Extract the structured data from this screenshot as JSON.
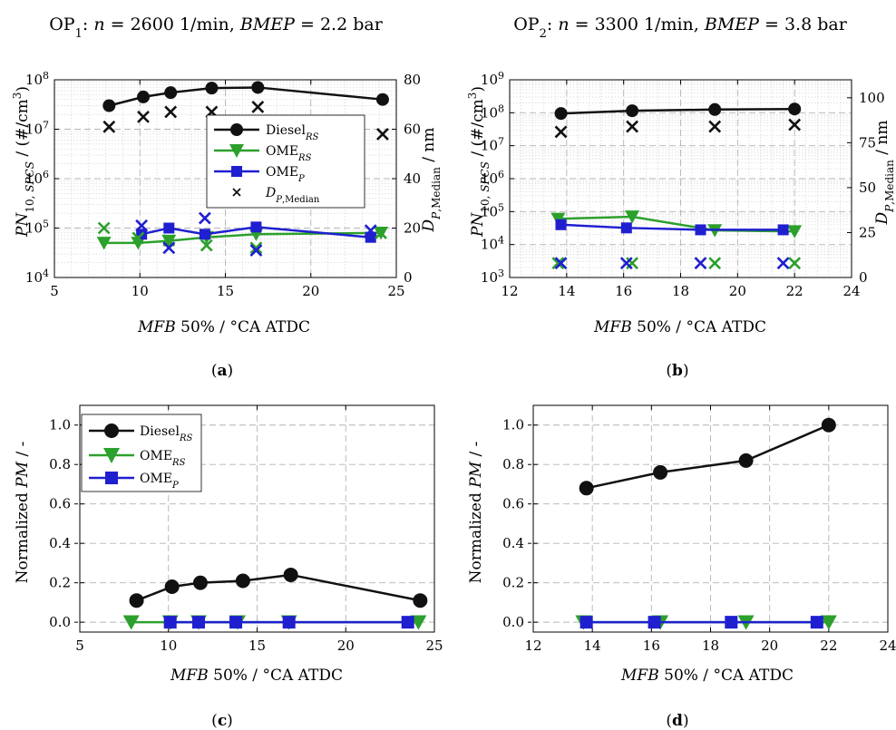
{
  "colors": {
    "diesel": "#111111",
    "ome_rs": "#2ca02c",
    "ome_p": "#1f1fd0",
    "dp": "#111111",
    "grid_major": "#b4b4b4",
    "grid_minor": "#d6d6d6"
  },
  "chart_data": [
    {
      "id": "a",
      "type": "line",
      "title": "OP1: n = 2600 1/min, BMEP = 2.2 bar",
      "panel_label": "(a)",
      "xlabel": "MFB 50% / °CA ATDC",
      "ylabel_left": "PN10, SPCS / (#/cm3)",
      "ylabel_right": "DP,Median / nm",
      "xlim": [
        5,
        25
      ],
      "xticks": [
        "5",
        "10",
        "15",
        "20",
        "25"
      ],
      "ylim_left": [
        10000,
        100000000
      ],
      "yscale_left": "log",
      "yticks_left": [
        "10^4",
        "10^5",
        "10^6",
        "10^7",
        "10^8"
      ],
      "ylim_right": [
        0,
        80
      ],
      "yticks_right": [
        "0",
        "20",
        "40",
        "60",
        "80"
      ],
      "grid": true,
      "legend": {
        "placement": "center-right",
        "entries": [
          "DieselRS",
          "OMERS",
          "OMEP",
          "DP,Median"
        ]
      },
      "series": [
        {
          "name": "DieselRS",
          "marker": "circle",
          "x": [
            8.2,
            10.2,
            11.8,
            14.2,
            16.9,
            24.2
          ],
          "y": [
            30000000,
            45000000,
            55000000,
            68000000,
            70000000,
            40000000
          ]
        },
        {
          "name": "OMERS",
          "marker": "triangle-down",
          "x": [
            7.9,
            9.9,
            11.7,
            13.9,
            16.8,
            24.1
          ],
          "y": [
            50000,
            50000,
            55000,
            65000,
            75000,
            80000
          ]
        },
        {
          "name": "OMEP",
          "marker": "square",
          "x": [
            10.1,
            11.7,
            13.8,
            16.8,
            23.5
          ],
          "y": [
            75000,
            100000,
            75000,
            105000,
            65000
          ]
        },
        {
          "name": "DP,Median",
          "marker": "x",
          "axis": "right",
          "groups": [
            {
              "color": "diesel",
              "x": [
                8.2,
                10.2,
                11.8,
                14.2,
                16.9,
                24.2
              ],
              "y": [
                61,
                65,
                67,
                67,
                69,
                58
              ]
            },
            {
              "color": "ome_rs",
              "x": [
                7.9,
                9.9,
                11.7,
                13.9,
                16.8,
                24.1
              ],
              "y": [
                20,
                16,
                15,
                13,
                12,
                18
              ]
            },
            {
              "color": "ome_p",
              "x": [
                10.1,
                11.7,
                13.8,
                16.8,
                23.5
              ],
              "y": [
                21,
                12,
                24,
                11,
                19
              ]
            }
          ]
        }
      ]
    },
    {
      "id": "b",
      "type": "line",
      "title": "OP2: n = 3300 1/min, BMEP = 3.8 bar",
      "panel_label": "(b)",
      "xlabel": "MFB 50% / °CA ATDC",
      "ylabel_left": "PN10, SPCS / (#/cm3)",
      "ylabel_right": "DP,Median / nm",
      "xlim": [
        12,
        24
      ],
      "xticks": [
        "12",
        "14",
        "16",
        "18",
        "20",
        "22",
        "24"
      ],
      "ylim_left": [
        1000,
        1000000000
      ],
      "yscale_left": "log",
      "yticks_left": [
        "10^3",
        "10^4",
        "10^5",
        "10^6",
        "10^7",
        "10^8",
        "10^9"
      ],
      "ylim_right": [
        0,
        110
      ],
      "yticks_right": [
        "0",
        "25",
        "50",
        "75",
        "100"
      ],
      "grid": true,
      "series": [
        {
          "name": "DieselRS",
          "marker": "circle",
          "x": [
            13.8,
            16.3,
            19.2,
            22
          ],
          "y": [
            95000000,
            115000000,
            125000000,
            130000000
          ]
        },
        {
          "name": "OMERS",
          "marker": "triangle-down",
          "x": [
            13.7,
            16.3,
            19.2,
            22
          ],
          "y": [
            60000,
            70000,
            27000,
            25000
          ]
        },
        {
          "name": "OMEP",
          "marker": "square",
          "x": [
            13.8,
            16.1,
            18.7,
            21.6
          ],
          "y": [
            40000,
            32000,
            28000,
            28000
          ]
        },
        {
          "name": "DP,Median",
          "marker": "x",
          "axis": "right",
          "groups": [
            {
              "color": "diesel",
              "x": [
                13.8,
                16.3,
                19.2,
                22
              ],
              "y": [
                81,
                84,
                84,
                85
              ]
            },
            {
              "color": "ome_rs",
              "x": [
                13.7,
                16.3,
                19.2,
                22
              ],
              "y": [
                8,
                8,
                8,
                8
              ]
            },
            {
              "color": "ome_p",
              "x": [
                13.8,
                16.1,
                18.7,
                21.6
              ],
              "y": [
                8,
                8,
                8,
                8
              ]
            }
          ]
        }
      ]
    },
    {
      "id": "c",
      "type": "line",
      "panel_label": "(c)",
      "xlabel": "MFB 50% / °CA ATDC",
      "ylabel": "Normalized PM / -",
      "xlim": [
        5,
        25
      ],
      "xticks": [
        "5",
        "10",
        "15",
        "20",
        "25"
      ],
      "ylim": [
        -0.05,
        1.1
      ],
      "yticks": [
        "0.0",
        "0.2",
        "0.4",
        "0.6",
        "0.8",
        "1.0"
      ],
      "grid": true,
      "legend": {
        "placement": "top-left",
        "entries": [
          "DieselRS",
          "OMERS",
          "OMEP"
        ]
      },
      "series": [
        {
          "name": "DieselRS",
          "marker": "circle",
          "x": [
            8.2,
            10.2,
            11.8,
            14.2,
            16.9,
            24.2
          ],
          "y": [
            0.11,
            0.18,
            0.2,
            0.21,
            0.24,
            0.11
          ]
        },
        {
          "name": "OMERS",
          "marker": "triangle-down",
          "x": [
            7.9,
            10.1,
            11.7,
            13.9,
            16.8,
            24.1
          ],
          "y": [
            0,
            0,
            0,
            0,
            0,
            0
          ]
        },
        {
          "name": "OMEP",
          "marker": "square",
          "x": [
            10.1,
            11.7,
            13.8,
            16.8,
            23.5
          ],
          "y": [
            0,
            0,
            0,
            0,
            0
          ]
        }
      ]
    },
    {
      "id": "d",
      "type": "line",
      "panel_label": "(d)",
      "xlabel": "MFB 50% / °CA ATDC",
      "ylabel": "Normalized PM / -",
      "xlim": [
        12,
        24
      ],
      "xticks": [
        "12",
        "14",
        "16",
        "18",
        "20",
        "22",
        "24"
      ],
      "ylim": [
        -0.05,
        1.1
      ],
      "yticks": [
        "0.0",
        "0.2",
        "0.4",
        "0.6",
        "0.8",
        "1.0"
      ],
      "grid": true,
      "series": [
        {
          "name": "DieselRS",
          "marker": "circle",
          "x": [
            13.8,
            16.3,
            19.2,
            22
          ],
          "y": [
            0.68,
            0.76,
            0.82,
            1.0
          ]
        },
        {
          "name": "OMERS",
          "marker": "triangle-down",
          "x": [
            13.7,
            16.3,
            19.2,
            22
          ],
          "y": [
            0,
            0,
            0,
            0
          ]
        },
        {
          "name": "OMEP",
          "marker": "square",
          "x": [
            13.8,
            16.1,
            18.7,
            21.6
          ],
          "y": [
            0,
            0,
            0,
            0
          ]
        }
      ]
    }
  ]
}
